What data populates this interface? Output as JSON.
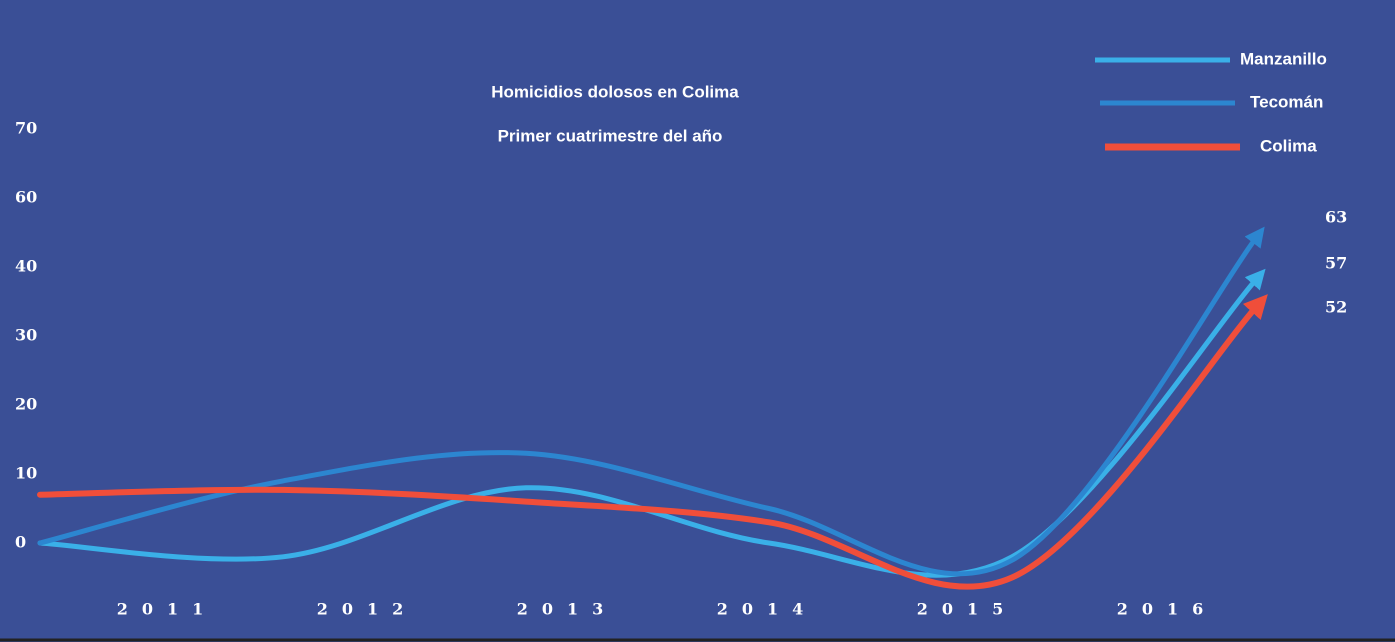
{
  "chart_data": {
    "type": "line",
    "title": "Homicidios dolosos en Colima",
    "subtitle": "Primer cuatrimestre del  año",
    "categories": [
      "2011",
      "2012",
      "2013",
      "2014",
      "2015",
      "2016"
    ],
    "series": [
      {
        "name": "Manzanillo",
        "color": "#3ab0e8",
        "values": [
          0,
          -2,
          8,
          0,
          -2,
          38
        ]
      },
      {
        "name": "Tecomán",
        "color": "#2c86d0",
        "values": [
          0,
          9,
          13,
          5,
          -2.5,
          44
        ]
      },
      {
        "name": "Colima",
        "color": "#f04e3a",
        "values": [
          7,
          7.7,
          6,
          3,
          -5,
          34
        ]
      }
    ],
    "annotations": [
      "63",
      "57",
      "52"
    ],
    "ylim": [
      -8,
      70
    ],
    "yticks": [
      0,
      10,
      20,
      30,
      40,
      {
        "value": 50,
        "label": "60"
      },
      {
        "value": 60,
        "label": "70"
      }
    ],
    "grid": false,
    "legend": "top-right"
  }
}
